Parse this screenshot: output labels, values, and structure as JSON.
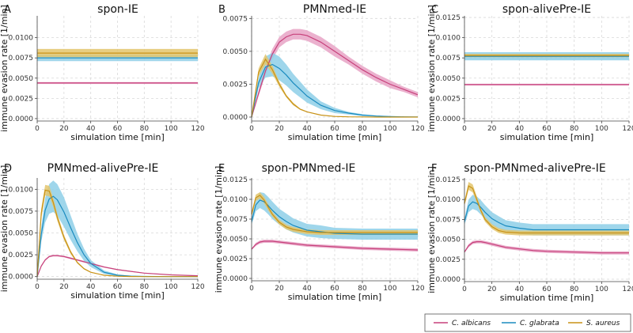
{
  "chart_data": [
    {
      "letter": "A",
      "title": "spon-IE",
      "type": "line",
      "xlabel": "simulation time [min]",
      "ylabel": "immune evasion rate [1/min]",
      "xlim": [
        0,
        120
      ],
      "ylim": [
        -0.0003,
        0.0127
      ],
      "xticks": [
        0,
        20,
        40,
        60,
        80,
        100,
        120
      ],
      "yticks": [
        0.0,
        0.0025,
        0.005,
        0.0075,
        0.01
      ],
      "ytick_labels": [
        "0.0000",
        "0.0025",
        "0.0050",
        "0.0075",
        "0.0100"
      ],
      "x": [
        0,
        20,
        40,
        60,
        80,
        100,
        120
      ],
      "series": [
        {
          "name": "C. albicans",
          "values": [
            0.0044,
            0.0044,
            0.0044,
            0.0044,
            0.0044,
            0.0044,
            0.0044
          ],
          "band": [
            0.00012,
            0.00012,
            0.00012,
            0.00012,
            0.00012,
            0.00012,
            0.00012
          ]
        },
        {
          "name": "C. glabrata",
          "values": [
            0.0075,
            0.0075,
            0.0075,
            0.0075,
            0.0075,
            0.0075,
            0.0075
          ],
          "band": [
            0.0004,
            0.0004,
            0.0004,
            0.0004,
            0.0004,
            0.0004,
            0.0004
          ]
        },
        {
          "name": "S. aureus",
          "values": [
            0.0081,
            0.0081,
            0.0081,
            0.0081,
            0.0081,
            0.0081,
            0.0081
          ],
          "band": [
            0.0005,
            0.0005,
            0.0005,
            0.0005,
            0.0005,
            0.0005,
            0.0005
          ]
        }
      ]
    },
    {
      "letter": "B",
      "title": "PMNmed-IE",
      "type": "line",
      "xlabel": "simulation time [min]",
      "ylabel": "",
      "xlim": [
        0,
        120
      ],
      "ylim": [
        -0.0003,
        0.0077
      ],
      "xticks": [
        0,
        20,
        40,
        60,
        80,
        100,
        120
      ],
      "yticks": [
        0.0,
        0.0025,
        0.005,
        0.0075
      ],
      "ytick_labels": [
        "0.0000",
        "0.0025",
        "0.0050",
        "0.0075"
      ],
      "x": [
        0,
        5,
        10,
        15,
        20,
        25,
        30,
        35,
        40,
        50,
        60,
        70,
        80,
        90,
        100,
        110,
        120
      ],
      "series": [
        {
          "name": "C. albicans",
          "values": [
            0,
            0.0018,
            0.0035,
            0.0048,
            0.0057,
            0.0061,
            0.0063,
            0.0063,
            0.0062,
            0.0057,
            0.005,
            0.0043,
            0.0036,
            0.003,
            0.0025,
            0.0021,
            0.0017
          ],
          "band": [
            0,
            0.0002,
            0.0003,
            0.0004,
            0.0004,
            0.0004,
            0.0004,
            0.0004,
            0.0004,
            0.0004,
            0.0004,
            0.0003,
            0.0003,
            0.0003,
            0.0003,
            0.0002,
            0.0002
          ]
        },
        {
          "name": "C. glabrata",
          "values": [
            0,
            0.0026,
            0.0038,
            0.004,
            0.0037,
            0.0032,
            0.0026,
            0.0021,
            0.0016,
            0.0009,
            0.0005,
            0.0003,
            0.00015,
            8e-05,
            4e-05,
            2e-05,
            1e-05
          ],
          "band": [
            0,
            0.0004,
            0.0008,
            0.0009,
            0.0009,
            0.0008,
            0.0007,
            0.0006,
            0.0005,
            0.0003,
            0.0002,
            0.0001,
            7e-05,
            4e-05,
            2e-05,
            1e-05,
            1e-05
          ]
        },
        {
          "name": "S. aureus",
          "values": [
            0,
            0.0034,
            0.0044,
            0.0036,
            0.0025,
            0.0016,
            0.001,
            0.0006,
            0.0004,
            0.00015,
            5e-05,
            2e-05,
            1e-05,
            0,
            0,
            0,
            0
          ],
          "band": [
            0,
            0.0003,
            0.0004,
            0.0003,
            0.0002,
            0.0001,
            0.0001,
            5e-05,
            3e-05,
            1e-05,
            0,
            0,
            0,
            0,
            0,
            0,
            0
          ]
        }
      ]
    },
    {
      "letter": "C",
      "title": "spon-alivePre-IE",
      "type": "line",
      "xlabel": "simulation time [min]",
      "ylabel": "immune evasion rate [1/min]",
      "xlim": [
        0,
        120
      ],
      "ylim": [
        -0.0003,
        0.0127
      ],
      "xticks": [
        0,
        20,
        40,
        60,
        80,
        100,
        120
      ],
      "yticks": [
        0.0,
        0.0025,
        0.005,
        0.0075,
        0.01,
        0.0125
      ],
      "ytick_labels": [
        "0.0000",
        "0.0025",
        "0.0050",
        "0.0075",
        "0.0100",
        "0.0125"
      ],
      "x": [
        0,
        20,
        40,
        60,
        80,
        100,
        120
      ],
      "series": [
        {
          "name": "C. albicans",
          "values": [
            0.0042,
            0.0042,
            0.0042,
            0.0042,
            0.0042,
            0.0042,
            0.0042
          ],
          "band": [
            0.0001,
            0.0001,
            0.0001,
            0.0001,
            0.0001,
            0.0001,
            0.0001
          ]
        },
        {
          "name": "C. glabrata",
          "values": [
            0.0077,
            0.0077,
            0.0077,
            0.0077,
            0.0077,
            0.0077,
            0.0077
          ],
          "band": [
            0.0005,
            0.0005,
            0.0005,
            0.0005,
            0.0005,
            0.0005,
            0.0005
          ]
        },
        {
          "name": "S. aureus",
          "values": [
            0.0078,
            0.0078,
            0.0078,
            0.0078,
            0.0078,
            0.0078,
            0.0078
          ],
          "band": [
            0.0002,
            0.0002,
            0.0002,
            0.0002,
            0.0002,
            0.0002,
            0.0002
          ]
        }
      ]
    },
    {
      "letter": "D",
      "title": "PMNmed-alivePre-IE",
      "type": "line",
      "xlabel": "simulation time [min]",
      "ylabel": "immune evasion rate [1/min]",
      "xlim": [
        0,
        120
      ],
      "ylim": [
        -0.0003,
        0.0113
      ],
      "xticks": [
        0,
        20,
        40,
        60,
        80,
        100,
        120
      ],
      "yticks": [
        0.0,
        0.0025,
        0.005,
        0.0075,
        0.01
      ],
      "ytick_labels": [
        "0.0000",
        "0.0025",
        "0.0050",
        "0.0075",
        "0.0100"
      ],
      "x": [
        0,
        3,
        6,
        9,
        12,
        15,
        20,
        25,
        30,
        35,
        40,
        50,
        60,
        70,
        80,
        100,
        120
      ],
      "series": [
        {
          "name": "C. albicans",
          "values": [
            0,
            0.0012,
            0.0019,
            0.0023,
            0.0024,
            0.0024,
            0.0023,
            0.0021,
            0.0019,
            0.0017,
            0.0015,
            0.0011,
            0.0008,
            0.0006,
            0.0004,
            0.0002,
            0.0001
          ],
          "band": [
            0,
            0.0001,
            0.0001,
            0.0001,
            0.0001,
            0.0001,
            0.0001,
            0.0001,
            0.0001,
            0.0001,
            0.0001,
            8e-05,
            6e-05,
            5e-05,
            4e-05,
            2e-05,
            1e-05
          ]
        },
        {
          "name": "C. glabrata",
          "values": [
            0,
            0.0048,
            0.0076,
            0.0089,
            0.0092,
            0.0088,
            0.0074,
            0.0056,
            0.0039,
            0.0025,
            0.0015,
            0.0005,
            0.00015,
            5e-05,
            2e-05,
            0,
            0
          ],
          "band": [
            0,
            0.0008,
            0.0014,
            0.0017,
            0.0018,
            0.0018,
            0.0017,
            0.0014,
            0.001,
            0.0007,
            0.0004,
            0.0002,
            0.0001,
            3e-05,
            1e-05,
            0,
            0
          ]
        },
        {
          "name": "S. aureus",
          "values": [
            0,
            0.0072,
            0.0099,
            0.0098,
            0.0085,
            0.0068,
            0.0045,
            0.0028,
            0.0016,
            0.0009,
            0.0005,
            0.00015,
            4e-05,
            1e-05,
            0,
            0,
            0
          ],
          "band": [
            0,
            0.0006,
            0.0006,
            0.0006,
            0.0005,
            0.0004,
            0.0003,
            0.0002,
            0.0001,
            8e-05,
            5e-05,
            2e-05,
            0,
            0,
            0,
            0,
            0
          ]
        }
      ]
    },
    {
      "letter": "E",
      "title": "spon-PMNmed-IE",
      "type": "line",
      "xlabel": "simulation time [min]",
      "ylabel": "immune evasion rate [1/min]",
      "xlim": [
        0,
        120
      ],
      "ylim": [
        -0.0003,
        0.0127
      ],
      "xticks": [
        0,
        20,
        40,
        60,
        80,
        100,
        120
      ],
      "yticks": [
        0.0,
        0.0025,
        0.005,
        0.0075,
        0.01,
        0.0125
      ],
      "ytick_labels": [
        "0.0000",
        "0.0025",
        "0.0050",
        "0.0075",
        "0.0100",
        "0.0125"
      ],
      "x": [
        0,
        3,
        6,
        9,
        12,
        15,
        20,
        25,
        30,
        40,
        50,
        60,
        80,
        100,
        120
      ],
      "series": [
        {
          "name": "C. albicans",
          "values": [
            0.0037,
            0.0043,
            0.0046,
            0.0047,
            0.0047,
            0.0047,
            0.0046,
            0.0045,
            0.0044,
            0.0042,
            0.0041,
            0.004,
            0.0038,
            0.0037,
            0.0036
          ],
          "band": [
            0.0001,
            0.0002,
            0.0002,
            0.0002,
            0.0002,
            0.0002,
            0.0002,
            0.0002,
            0.0002,
            0.0002,
            0.0002,
            0.0002,
            0.0002,
            0.0002,
            0.0002
          ]
        },
        {
          "name": "C. glabrata",
          "values": [
            0.0072,
            0.0093,
            0.0099,
            0.0097,
            0.0092,
            0.0086,
            0.0078,
            0.0072,
            0.0067,
            0.0061,
            0.0059,
            0.0057,
            0.0056,
            0.0056,
            0.0056
          ],
          "band": [
            0.0004,
            0.0008,
            0.001,
            0.0011,
            0.0011,
            0.0011,
            0.001,
            0.001,
            0.0009,
            0.0008,
            0.0008,
            0.0007,
            0.0007,
            0.0007,
            0.0007
          ]
        },
        {
          "name": "S. aureus",
          "values": [
            0.0081,
            0.0102,
            0.0105,
            0.0099,
            0.009,
            0.0081,
            0.0071,
            0.0065,
            0.0062,
            0.0059,
            0.0058,
            0.0058,
            0.0058,
            0.0058,
            0.0058
          ],
          "band": [
            0.0003,
            0.0004,
            0.0004,
            0.0004,
            0.0004,
            0.0003,
            0.0003,
            0.0003,
            0.0003,
            0.0003,
            0.0003,
            0.0003,
            0.0003,
            0.0003,
            0.0003
          ]
        }
      ]
    },
    {
      "letter": "F",
      "title": "spon-PMNmed-alivePre-IE",
      "type": "line",
      "xlabel": "simulation time [min]",
      "ylabel": "immune evasion rate [1/min]",
      "xlim": [
        0,
        120
      ],
      "ylim": [
        -0.0003,
        0.0127
      ],
      "xticks": [
        0,
        20,
        40,
        60,
        80,
        100,
        120
      ],
      "yticks": [
        0.0,
        0.0025,
        0.005,
        0.0075,
        0.01,
        0.0125
      ],
      "ytick_labels": [
        "0.0000",
        "0.0025",
        "0.0050",
        "0.0075",
        "0.0100",
        "0.0125"
      ],
      "x": [
        0,
        3,
        6,
        9,
        12,
        15,
        20,
        25,
        30,
        40,
        50,
        60,
        80,
        100,
        120
      ],
      "series": [
        {
          "name": "C. albicans",
          "values": [
            0.0034,
            0.0042,
            0.0046,
            0.0047,
            0.0047,
            0.0046,
            0.0044,
            0.0042,
            0.004,
            0.0038,
            0.0036,
            0.0035,
            0.0034,
            0.0033,
            0.0033
          ],
          "band": [
            0.0001,
            0.0002,
            0.0002,
            0.0002,
            0.0002,
            0.0002,
            0.0002,
            0.0002,
            0.0002,
            0.0002,
            0.0002,
            0.0002,
            0.0002,
            0.0002,
            0.0002
          ]
        },
        {
          "name": "C. glabrata",
          "values": [
            0.0072,
            0.0092,
            0.0097,
            0.0095,
            0.009,
            0.0084,
            0.0076,
            0.0071,
            0.0067,
            0.0064,
            0.0062,
            0.0062,
            0.0062,
            0.0062,
            0.0062
          ],
          "band": [
            0.0004,
            0.0008,
            0.0009,
            0.0009,
            0.0009,
            0.0009,
            0.0008,
            0.0008,
            0.0007,
            0.0007,
            0.0007,
            0.0007,
            0.0007,
            0.0007,
            0.0007
          ]
        },
        {
          "name": "S. aureus",
          "values": [
            0.0095,
            0.0117,
            0.0114,
            0.01,
            0.0086,
            0.0075,
            0.0066,
            0.0061,
            0.0059,
            0.0058,
            0.0058,
            0.0058,
            0.0058,
            0.0058,
            0.0058
          ],
          "band": [
            0.0003,
            0.0005,
            0.0005,
            0.0004,
            0.0003,
            0.0003,
            0.0003,
            0.0003,
            0.0003,
            0.0003,
            0.0003,
            0.0003,
            0.0003,
            0.0003,
            0.0003
          ]
        }
      ]
    }
  ],
  "legend": {
    "items": [
      {
        "name": "C. albicans",
        "color": "#c7417b"
      },
      {
        "name": "C. glabrata",
        "color": "#1a8bbf"
      },
      {
        "name": "S. aureus",
        "color": "#c89217"
      }
    ]
  },
  "colors": {
    "C. albicans": {
      "line": "#c7417b",
      "band": "#e7a3c6"
    },
    "C. glabrata": {
      "line": "#1a8bbf",
      "band": "#8ecfe8"
    },
    "S. aureus": {
      "line": "#c89217",
      "band": "#e3c56d"
    }
  }
}
